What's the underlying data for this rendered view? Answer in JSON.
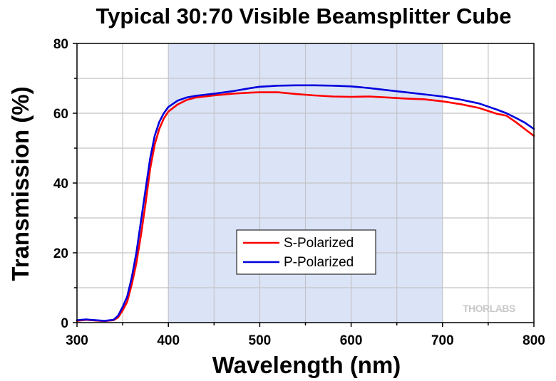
{
  "chart_data": {
    "type": "line",
    "title": "Typical 30:70 Visible Beamsplitter Cube",
    "xlabel": "Wavelength (nm)",
    "ylabel": "Transmission (%)",
    "xlim": [
      300,
      800
    ],
    "ylim": [
      0,
      80
    ],
    "xticks": [
      "300",
      "400",
      "500",
      "600",
      "700",
      "800"
    ],
    "yticks": [
      "0",
      "20",
      "40",
      "60",
      "80"
    ],
    "grid": true,
    "legend_position": "center-bottom",
    "highlight_band": {
      "x": [
        400,
        700
      ],
      "color": "#dbe3f7"
    },
    "watermark": "THORLABS",
    "series": [
      {
        "name": "S-Polarized",
        "color": "#ff0000",
        "x": [
          300,
          310,
          320,
          330,
          340,
          345,
          350,
          355,
          360,
          365,
          370,
          375,
          380,
          385,
          390,
          395,
          400,
          410,
          420,
          430,
          440,
          450,
          470,
          490,
          500,
          520,
          540,
          560,
          580,
          600,
          620,
          640,
          660,
          680,
          700,
          720,
          740,
          760,
          770,
          780,
          790,
          800
        ],
        "y": [
          0.5,
          0.8,
          0.6,
          0.4,
          0.7,
          1.5,
          3.5,
          6,
          11,
          17,
          25,
          34,
          44,
          51,
          55.5,
          58.5,
          60.5,
          62.5,
          63.8,
          64.5,
          64.8,
          65.1,
          65.6,
          65.9,
          66,
          66,
          65.5,
          65.1,
          64.8,
          64.7,
          64.8,
          64.5,
          64.2,
          64,
          63.4,
          62.6,
          61.5,
          59.8,
          59.3,
          57.5,
          55.5,
          53.5
        ]
      },
      {
        "name": "P-Polarized",
        "color": "#0000dd",
        "x": [
          300,
          310,
          320,
          330,
          340,
          345,
          350,
          355,
          360,
          365,
          370,
          375,
          380,
          385,
          390,
          395,
          400,
          410,
          420,
          430,
          440,
          450,
          470,
          490,
          500,
          520,
          540,
          560,
          580,
          600,
          620,
          640,
          660,
          680,
          700,
          720,
          740,
          760,
          770,
          780,
          790,
          800
        ],
        "y": [
          0.7,
          0.9,
          0.7,
          0.5,
          0.8,
          2,
          4.5,
          7.5,
          13,
          20,
          29,
          38,
          47,
          53.5,
          57.5,
          60,
          61.8,
          63.6,
          64.5,
          65,
          65.3,
          65.6,
          66.3,
          67.2,
          67.6,
          67.9,
          68,
          68,
          67.9,
          67.7,
          67.2,
          66.6,
          66,
          65.4,
          64.8,
          63.9,
          62.8,
          61,
          60,
          58.7,
          57.3,
          55.5
        ]
      }
    ]
  }
}
